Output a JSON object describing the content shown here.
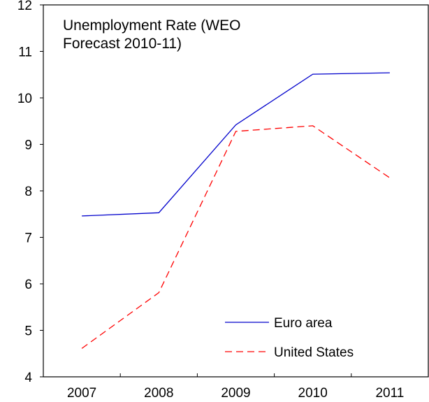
{
  "chart_data": {
    "type": "line",
    "title_lines": [
      "Unemployment Rate (WEO",
      "Forecast  2010-11)"
    ],
    "categories": [
      "2007",
      "2008",
      "2009",
      "2010",
      "2011"
    ],
    "ylim": [
      4,
      12
    ],
    "yticks": [
      4,
      5,
      6,
      7,
      8,
      9,
      10,
      11,
      12
    ],
    "xlabel": "",
    "ylabel": "",
    "grid": false,
    "legend_position": "bottom-right",
    "series": [
      {
        "name": "Euro area",
        "values": [
          7.46,
          7.53,
          9.42,
          10.51,
          10.54
        ],
        "color": "#0000cc",
        "dash": "solid"
      },
      {
        "name": "United States",
        "values": [
          4.61,
          5.81,
          9.28,
          9.4,
          8.28
        ],
        "color": "#ff0000",
        "dash": "dashed"
      }
    ]
  }
}
